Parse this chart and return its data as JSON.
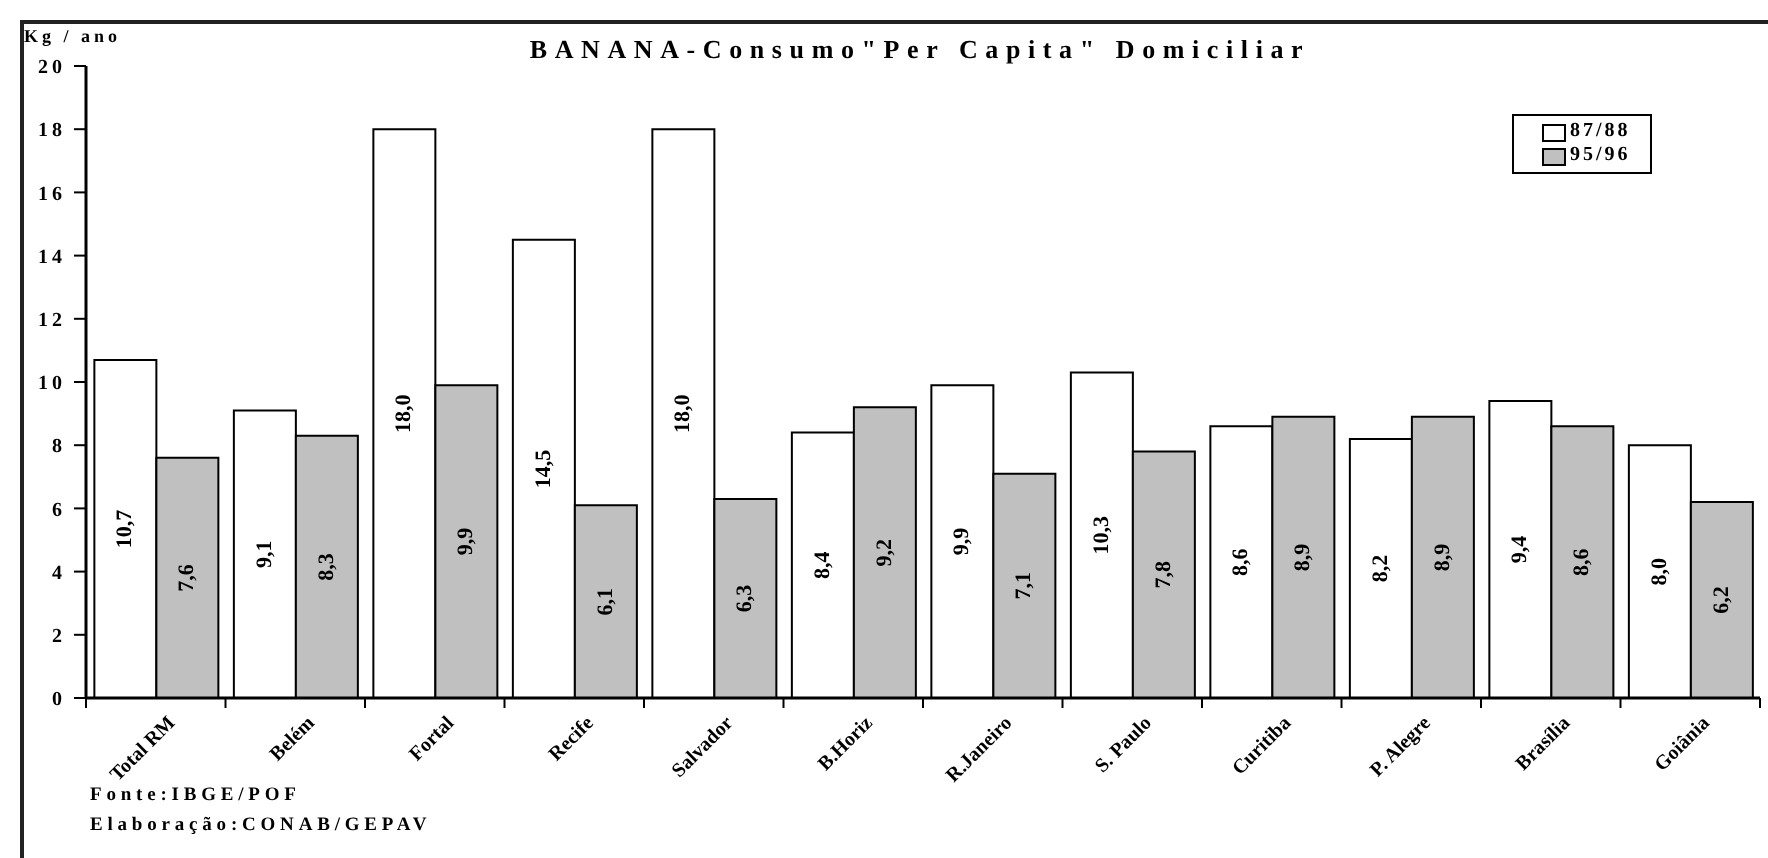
{
  "chart_data": {
    "type": "bar",
    "title": "BANANA-Consumo\"Per Capita\" Domiciliar",
    "ylabel": "Kg / ano",
    "categories": [
      "Total RM",
      "Belém",
      "Fortal",
      "Recife",
      "Salvador",
      "B.Horiz",
      "R.Janeiro",
      "S. Paulo",
      "Curitiba",
      "P. Alegre",
      "Brasília",
      "Goiânia"
    ],
    "series": [
      {
        "name": "87/88",
        "color": "#ffffff",
        "values": [
          10.7,
          9.1,
          18.0,
          14.5,
          18.0,
          8.4,
          9.9,
          10.3,
          8.6,
          8.2,
          9.4,
          8.0
        ],
        "value_labels": [
          "10,7",
          "9,1",
          "18,0",
          "14,5",
          "18,0",
          "8,4",
          "9,9",
          "10,3",
          "8,6",
          "8,2",
          "9,4",
          "8,0"
        ]
      },
      {
        "name": "95/96",
        "color": "#c0c0c0",
        "values": [
          7.6,
          8.3,
          9.9,
          6.1,
          6.3,
          9.2,
          7.1,
          7.8,
          8.9,
          8.9,
          8.6,
          6.2
        ],
        "value_labels": [
          "7,6",
          "8,3",
          "9,9",
          "6,1",
          "6,3",
          "9,2",
          "7,1",
          "7,8",
          "8,9",
          "8,9",
          "8,6",
          "6,2"
        ]
      }
    ],
    "ylim": [
      0,
      20
    ],
    "yticks": [
      0,
      2,
      4,
      6,
      8,
      10,
      12,
      14,
      16,
      18,
      20
    ],
    "legend": "top right",
    "annotations": [
      "Fonte:IBGE/POF",
      "Elaboração:CONAB/GEPAV"
    ]
  }
}
